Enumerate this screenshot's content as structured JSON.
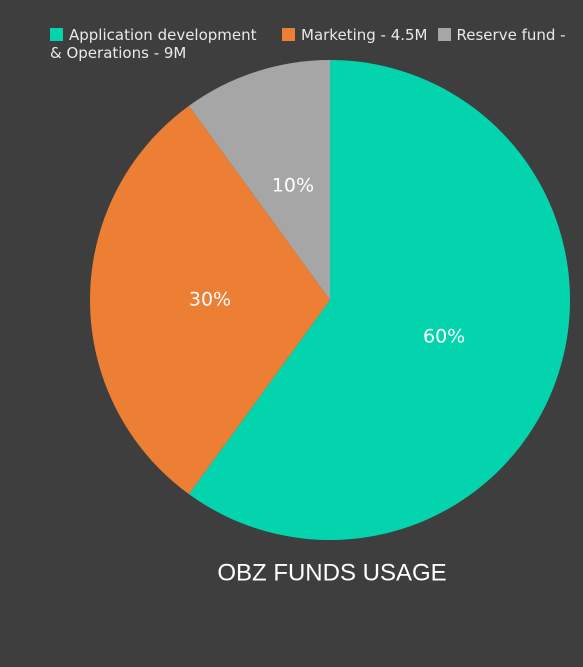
{
  "chart_data": {
    "type": "pie",
    "title": "OBZ FUNDS USAGE",
    "categories": [
      "Application development & Operations - 9M",
      "Marketing - 4.5M",
      "Reserve fund -"
    ],
    "values": [
      60,
      30,
      10
    ],
    "value_labels": [
      "60%",
      "30%",
      "10%"
    ],
    "colors": [
      "#03d4ad",
      "#ec7f33",
      "#a6a6a6"
    ]
  }
}
